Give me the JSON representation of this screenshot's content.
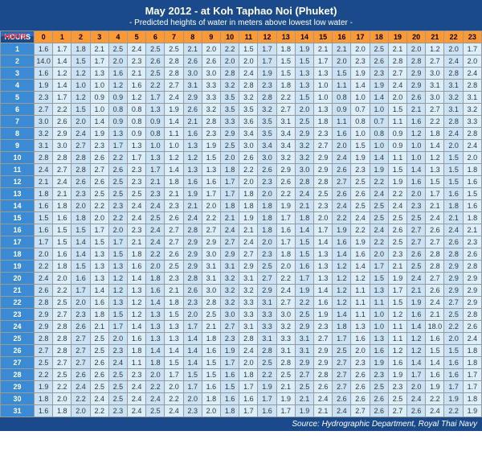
{
  "header": {
    "title": "May 2012 - at Koh Taphao Noi (Phuket)",
    "subtitle": "- Predicted heights of water in meters above lowest low water -"
  },
  "footer": {
    "source": "Source: Hydrographic Department, Royal Thai Navy"
  },
  "axis": {
    "hours_label": "HOURS",
    "days_label": "▾DAYS"
  },
  "colors": {
    "header_bg": "#1a4a8a",
    "day_bg": "#3a8ad4",
    "hour_bg": "#ff9933",
    "cell_alt": [
      "#c9e2f5",
      "#dbeefb"
    ],
    "cell_txt": "#333"
  },
  "hours": [
    0,
    1,
    2,
    3,
    4,
    5,
    6,
    7,
    8,
    9,
    10,
    11,
    12,
    13,
    14,
    15,
    16,
    17,
    18,
    19,
    20,
    21,
    22,
    23
  ],
  "days": [
    1,
    2,
    3,
    4,
    5,
    6,
    7,
    8,
    9,
    10,
    11,
    12,
    13,
    14,
    15,
    16,
    17,
    18,
    19,
    20,
    21,
    22,
    23,
    24,
    25,
    26,
    27,
    28,
    29,
    30,
    31
  ],
  "rows": [
    [
      "1.6",
      "1.7",
      "1.8",
      "2.1",
      "2.5",
      "2.4",
      "2.5",
      "2.5",
      "2.1",
      "2.0",
      "2.2",
      "1.5",
      "1.7",
      "1.8",
      "1.9",
      "2.1",
      "2.1",
      "2.0",
      "2.5",
      "2.1",
      "2.0",
      "1.2",
      "2.0",
      "1.7"
    ],
    [
      "14.0",
      "1.4",
      "1.5",
      "1.7",
      "2.0",
      "2.3",
      "2.6",
      "2.8",
      "2.6",
      "2.6",
      "2.0",
      "2.0",
      "1.7",
      "1.5",
      "1.5",
      "1.7",
      "2.0",
      "2.3",
      "2.6",
      "2.8",
      "2.8",
      "2.7",
      "2.4",
      "2.0"
    ],
    [
      "1.6",
      "1.2",
      "1.2",
      "1.3",
      "1.6",
      "2.1",
      "2.5",
      "2.8",
      "3.0",
      "3.0",
      "2.8",
      "2.4",
      "1.9",
      "1.5",
      "1.3",
      "1.3",
      "1.5",
      "1.9",
      "2.3",
      "2.7",
      "2.9",
      "3.0",
      "2.8",
      "2.4"
    ],
    [
      "1.9",
      "1.4",
      "1.0",
      "1.0",
      "1.2",
      "1.6",
      "2.2",
      "2.7",
      "3.1",
      "3.3",
      "3.2",
      "2.8",
      "2.3",
      "1.8",
      "1.3",
      "1.0",
      "1.1",
      "1.4",
      "1.9",
      "2.4",
      "2.9",
      "3.1",
      "3.1",
      "2.8"
    ],
    [
      "2.3",
      "1.7",
      "1.2",
      "0.9",
      "0.9",
      "1.2",
      "1.7",
      "2.4",
      "2.9",
      "3.3",
      "3.5",
      "3.2",
      "2.8",
      "2.2",
      "1.5",
      "1.0",
      "0.8",
      "1.0",
      "1.4",
      "2.0",
      "2.6",
      "3.0",
      "3.2",
      "3.1"
    ],
    [
      "2.7",
      "2.2",
      "1.5",
      "1.0",
      "0.8",
      "0.8",
      "1.3",
      "1.9",
      "2.6",
      "3.2",
      "3.5",
      "3.5",
      "3.2",
      "2.7",
      "2.0",
      "1.3",
      "0.9",
      "0.7",
      "1.0",
      "1.5",
      "2.1",
      "2.7",
      "3.1",
      "3.2"
    ],
    [
      "3.0",
      "2.6",
      "2.0",
      "1.4",
      "0.9",
      "0.8",
      "0.9",
      "1.4",
      "2.1",
      "2.8",
      "3.3",
      "3.6",
      "3.5",
      "3.1",
      "2.5",
      "1.8",
      "1.1",
      "0.8",
      "0.7",
      "1.1",
      "1.6",
      "2.2",
      "2.8",
      "3.3"
    ],
    [
      "3.2",
      "2.9",
      "2.4",
      "1.9",
      "1.3",
      "0.9",
      "0.8",
      "1.1",
      "1.6",
      "2.3",
      "2.9",
      "3.4",
      "3.5",
      "3.4",
      "2.9",
      "2.3",
      "1.6",
      "1.0",
      "0.8",
      "0.9",
      "1.2",
      "1.8",
      "2.4",
      "2.8"
    ],
    [
      "3.1",
      "3.0",
      "2.7",
      "2.3",
      "1.7",
      "1.3",
      "1.0",
      "1.0",
      "1.3",
      "1.9",
      "2.5",
      "3.0",
      "3.4",
      "3.4",
      "3.2",
      "2.7",
      "2.0",
      "1.5",
      "1.0",
      "0.9",
      "1.0",
      "1.4",
      "2.0",
      "2.4"
    ],
    [
      "2.8",
      "2.8",
      "2.8",
      "2.6",
      "2.2",
      "1.7",
      "1.3",
      "1.2",
      "1.2",
      "1.5",
      "2.0",
      "2.6",
      "3.0",
      "3.2",
      "3.2",
      "2.9",
      "2.4",
      "1.9",
      "1.4",
      "1.1",
      "1.0",
      "1.2",
      "1.5",
      "2.0"
    ],
    [
      "2.4",
      "2.7",
      "2.8",
      "2.7",
      "2.6",
      "2.3",
      "1.7",
      "1.4",
      "1.3",
      "1.3",
      "1.8",
      "2.2",
      "2.6",
      "2.9",
      "3.0",
      "2.9",
      "2.6",
      "2.3",
      "1.9",
      "1.5",
      "1.4",
      "1.3",
      "1.5",
      "1.8"
    ],
    [
      "2.1",
      "2.4",
      "2.6",
      "2.6",
      "2.5",
      "2.3",
      "2.1",
      "1.8",
      "1.6",
      "1.6",
      "1.7",
      "2.0",
      "2.3",
      "2.6",
      "2.8",
      "2.8",
      "2.7",
      "2.5",
      "2.2",
      "1.9",
      "1.6",
      "1.5",
      "1.5",
      "1.6"
    ],
    [
      "1.8",
      "2.1",
      "2.3",
      "2.5",
      "2.5",
      "2.5",
      "2.3",
      "2.1",
      "1.9",
      "1.7",
      "1.7",
      "1.8",
      "2.0",
      "2.2",
      "2.4",
      "2.5",
      "2.6",
      "2.6",
      "2.4",
      "2.2",
      "2.0",
      "1.7",
      "1.6",
      "1.5"
    ],
    [
      "1.6",
      "1.8",
      "2.0",
      "2.2",
      "2.3",
      "2.4",
      "2.4",
      "2.3",
      "2.1",
      "2.0",
      "1.8",
      "1.8",
      "1.8",
      "1.9",
      "2.1",
      "2.3",
      "2.4",
      "2.5",
      "2.5",
      "2.4",
      "2.3",
      "2.1",
      "1.8",
      "1.6"
    ],
    [
      "1.5",
      "1.6",
      "1.8",
      "2.0",
      "2.2",
      "2.4",
      "2.5",
      "2.6",
      "2.4",
      "2.2",
      "2.1",
      "1.9",
      "1.8",
      "1.7",
      "1.8",
      "2.0",
      "2.2",
      "2.4",
      "2.5",
      "2.5",
      "2.5",
      "2.4",
      "2.1",
      "1.8"
    ],
    [
      "1.6",
      "1.5",
      "1.5",
      "1.7",
      "2.0",
      "2.3",
      "2.4",
      "2.7",
      "2.8",
      "2.7",
      "2.4",
      "2.1",
      "1.8",
      "1.6",
      "1.4",
      "1.7",
      "1.9",
      "2.2",
      "2.4",
      "2.6",
      "2.7",
      "2.6",
      "2.4",
      "2.1"
    ],
    [
      "1.7",
      "1.5",
      "1.4",
      "1.5",
      "1.7",
      "2.1",
      "2.4",
      "2.7",
      "2.9",
      "2.9",
      "2.7",
      "2.4",
      "2.0",
      "1.7",
      "1.5",
      "1.4",
      "1.6",
      "1.9",
      "2.2",
      "2.5",
      "2.7",
      "2.7",
      "2.6",
      "2.3"
    ],
    [
      "2.0",
      "1.6",
      "1.4",
      "1.3",
      "1.5",
      "1.8",
      "2.2",
      "2.6",
      "2.9",
      "3.0",
      "2.9",
      "2.7",
      "2.3",
      "1.8",
      "1.5",
      "1.3",
      "1.4",
      "1.6",
      "2.0",
      "2.3",
      "2.6",
      "2.8",
      "2.8",
      "2.6"
    ],
    [
      "2.2",
      "1.8",
      "1.5",
      "1.3",
      "1.3",
      "1.6",
      "2.0",
      "2.5",
      "2.9",
      "3.1",
      "3.1",
      "2.9",
      "2.5",
      "2.0",
      "1.6",
      "1.3",
      "1.2",
      "1.4",
      "1.7",
      "2.1",
      "2.5",
      "2.8",
      "2.9",
      "2.8"
    ],
    [
      "2.4",
      "2.0",
      "1.6",
      "1.3",
      "1.2",
      "1.4",
      "1.8",
      "2.3",
      "2.8",
      "3.1",
      "3.2",
      "3.1",
      "2.7",
      "2.2",
      "1.7",
      "1.3",
      "1.2",
      "1.2",
      "1.5",
      "1.9",
      "2.4",
      "2.7",
      "2.9",
      "2.9"
    ],
    [
      "2.6",
      "2.2",
      "1.7",
      "1.4",
      "1.2",
      "1.3",
      "1.6",
      "2.1",
      "2.6",
      "3.0",
      "3.2",
      "3.2",
      "2.9",
      "2.4",
      "1.9",
      "1.4",
      "1.2",
      "1.1",
      "1.3",
      "1.7",
      "2.1",
      "2.6",
      "2.9",
      "2.9"
    ],
    [
      "2.8",
      "2.5",
      "2.0",
      "1.6",
      "1.3",
      "1.2",
      "1.4",
      "1.8",
      "2.3",
      "2.8",
      "3.2",
      "3.3",
      "3.1",
      "2.7",
      "2.2",
      "1.6",
      "1.2",
      "1.1",
      "1.1",
      "1.5",
      "1.9",
      "2.4",
      "2.7",
      "2.9"
    ],
    [
      "2.9",
      "2.7",
      "2.3",
      "1.8",
      "1.5",
      "1.2",
      "1.3",
      "1.5",
      "2.0",
      "2.5",
      "3.0",
      "3.3",
      "3.3",
      "3.0",
      "2.5",
      "1.9",
      "1.4",
      "1.1",
      "1.0",
      "1.2",
      "1.6",
      "2.1",
      "2.5",
      "2.8"
    ],
    [
      "2.9",
      "2.8",
      "2.6",
      "2.1",
      "1.7",
      "1.4",
      "1.3",
      "1.3",
      "1.7",
      "2.1",
      "2.7",
      "3.1",
      "3.3",
      "3.2",
      "2.9",
      "2.3",
      "1.8",
      "1.3",
      "1.0",
      "1.1",
      "1.4",
      "18.0",
      "2.2",
      "2.6"
    ],
    [
      "2.8",
      "2.8",
      "2.7",
      "2.5",
      "2.0",
      "1.6",
      "1.3",
      "1.3",
      "1.4",
      "1.8",
      "2.3",
      "2.8",
      "3.1",
      "3.3",
      "3.1",
      "2.7",
      "1.7",
      "1.6",
      "1.3",
      "1.1",
      "1.2",
      "1.6",
      "2.0",
      "2.4"
    ],
    [
      "2.7",
      "2.8",
      "2.7",
      "2.5",
      "2.3",
      "1.8",
      "1.4",
      "1.4",
      "1.4",
      "1.6",
      "1.9",
      "2.4",
      "2.8",
      "3.1",
      "3.1",
      "2.9",
      "2.5",
      "2.0",
      "1.6",
      "1.2",
      "1.2",
      "1.5",
      "1.5",
      "1.8"
    ],
    [
      "2.5",
      "2.7",
      "2.7",
      "2.6",
      "2.4",
      "1.1",
      "1.8",
      "1.5",
      "1.4",
      "1.5",
      "1.7",
      "2.0",
      "2.5",
      "2.8",
      "2.9",
      "2.9",
      "2.7",
      "2.3",
      "1.9",
      "1.6",
      "1.4",
      "1.4",
      "1.6",
      "1.8"
    ],
    [
      "2.2",
      "2.5",
      "2.6",
      "2.6",
      "2.5",
      "2.3",
      "2.0",
      "1.7",
      "1.5",
      "1.5",
      "1.6",
      "1.8",
      "2.2",
      "2.5",
      "2.7",
      "2.8",
      "2.7",
      "2.6",
      "2.3",
      "1.9",
      "1.7",
      "1.6",
      "1.6",
      "1.7"
    ],
    [
      "1.9",
      "2.2",
      "2.4",
      "2.5",
      "2.5",
      "2.4",
      "2.2",
      "2.0",
      "1.7",
      "1.6",
      "1.5",
      "1.7",
      "1.9",
      "2.1",
      "2.5",
      "2.6",
      "2.7",
      "2.6",
      "2.5",
      "2.3",
      "2.0",
      "1.9",
      "1.7",
      "1.7"
    ],
    [
      "1.8",
      "2.0",
      "2.2",
      "2.4",
      "2.5",
      "2.4",
      "2.4",
      "2.2",
      "2.0",
      "1.8",
      "1.6",
      "1.6",
      "1.7",
      "1.9",
      "2.1",
      "2.4",
      "2.6",
      "2.6",
      "2.6",
      "2.5",
      "2.4",
      "2.2",
      "1.9",
      "1.8"
    ],
    [
      "1.6",
      "1.8",
      "2.0",
      "2.2",
      "2.3",
      "2.4",
      "2.5",
      "2.4",
      "2.3",
      "2.0",
      "1.8",
      "1.7",
      "1.6",
      "1.7",
      "1.9",
      "2.1",
      "2.4",
      "2.7",
      "2.6",
      "2.7",
      "2.6",
      "2.4",
      "2.2",
      "1.9"
    ]
  ]
}
